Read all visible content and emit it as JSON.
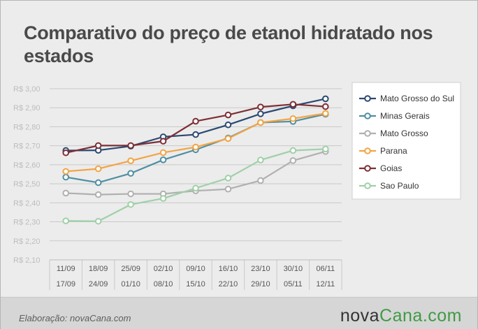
{
  "title": "Comparativo do preço de etanol hidratado nos estados",
  "footer": {
    "note": "Elaboração: novaCana.com",
    "brand_part1": "nova",
    "brand_part2": "Cana.com"
  },
  "colors": {
    "background": "#ececec",
    "grid": "#c9c9c9",
    "tick_text": "#bdbdbd",
    "axis_text": "#555555"
  },
  "chart_data": {
    "type": "line",
    "categories": [
      [
        "11/09",
        "17/09"
      ],
      [
        "18/09",
        "24/09"
      ],
      [
        "25/09",
        "01/10"
      ],
      [
        "02/10",
        "08/10"
      ],
      [
        "09/10",
        "15/10"
      ],
      [
        "16/10",
        "22/10"
      ],
      [
        "23/10",
        "29/10"
      ],
      [
        "30/10",
        "05/11"
      ],
      [
        "06/11",
        "12/11"
      ]
    ],
    "yticks": [
      "R$ 3,00",
      "R$ 2,90",
      "R$ 2,80",
      "R$ 2,70",
      "R$ 2,60",
      "R$ 2,50",
      "R$ 2,40",
      "R$ 2,30",
      "R$ 2,20",
      "R$ 2,10"
    ],
    "ylim": [
      2.1,
      3.0
    ],
    "grid": true,
    "legend_position": "right",
    "series": [
      {
        "name": "Mato Grosso do Sul",
        "color": "#2c4a72",
        "values": [
          2.675,
          2.676,
          2.698,
          2.747,
          2.759,
          2.81,
          2.868,
          2.91,
          2.947
        ]
      },
      {
        "name": "Minas Gerais",
        "color": "#4f8fa3",
        "values": [
          2.535,
          2.506,
          2.555,
          2.626,
          2.679,
          2.741,
          2.822,
          2.828,
          2.866
        ]
      },
      {
        "name": "Mato Grosso",
        "color": "#b0b0b0",
        "values": [
          2.451,
          2.443,
          2.447,
          2.447,
          2.463,
          2.472,
          2.517,
          2.622,
          2.67
        ]
      },
      {
        "name": "Parana",
        "color": "#f2a444",
        "values": [
          2.565,
          2.579,
          2.621,
          2.664,
          2.693,
          2.738,
          2.822,
          2.843,
          2.87
        ]
      },
      {
        "name": "Goias",
        "color": "#7d2f35",
        "values": [
          2.663,
          2.701,
          2.701,
          2.724,
          2.829,
          2.862,
          2.904,
          2.918,
          2.906
        ]
      },
      {
        "name": "Sao Paulo",
        "color": "#9fd0a8",
        "values": [
          2.305,
          2.303,
          2.391,
          2.423,
          2.477,
          2.53,
          2.625,
          2.675,
          2.683
        ]
      }
    ]
  }
}
